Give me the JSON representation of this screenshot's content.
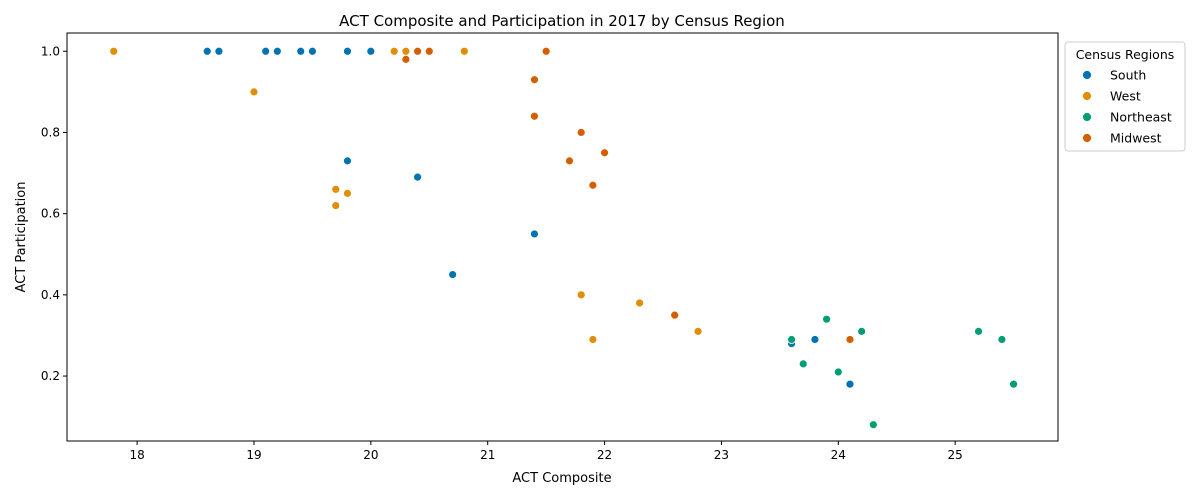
{
  "chart_data": {
    "type": "scatter",
    "title": "ACT Composite and Participation in 2017 by Census Region",
    "xlabel": "ACT Composite",
    "ylabel": "ACT Participation",
    "xlim": [
      17.4,
      25.88
    ],
    "ylim": [
      0.04,
      1.045
    ],
    "xticks": [
      "18",
      "19",
      "20",
      "21",
      "22",
      "23",
      "24",
      "25"
    ],
    "yticks": [
      "0.2",
      "0.4",
      "0.6",
      "0.8",
      "1.0"
    ],
    "grid": false,
    "legend": {
      "title": "Census Regions",
      "placement": "outside-right-top"
    },
    "series": [
      {
        "name": "South",
        "color": "#0173b2",
        "points": [
          [
            18.6,
            1.0
          ],
          [
            18.7,
            1.0
          ],
          [
            19.1,
            1.0
          ],
          [
            19.2,
            1.0
          ],
          [
            19.4,
            1.0
          ],
          [
            19.5,
            1.0
          ],
          [
            19.8,
            1.0
          ],
          [
            20.0,
            1.0
          ],
          [
            19.8,
            0.73
          ],
          [
            20.4,
            0.69
          ],
          [
            21.4,
            0.55
          ],
          [
            20.7,
            0.45
          ],
          [
            23.6,
            0.28
          ],
          [
            23.8,
            0.29
          ],
          [
            24.1,
            0.18
          ]
        ]
      },
      {
        "name": "West",
        "color": "#de8f05",
        "points": [
          [
            17.8,
            1.0
          ],
          [
            19.0,
            0.9
          ],
          [
            20.2,
            1.0
          ],
          [
            20.3,
            1.0
          ],
          [
            20.8,
            1.0
          ],
          [
            19.7,
            0.66
          ],
          [
            19.8,
            0.65
          ],
          [
            19.7,
            0.62
          ],
          [
            21.8,
            0.4
          ],
          [
            21.9,
            0.29
          ],
          [
            22.3,
            0.38
          ],
          [
            22.8,
            0.31
          ],
          [
            20.5,
            1.0
          ]
        ]
      },
      {
        "name": "Northeast",
        "color": "#029e73",
        "points": [
          [
            23.6,
            0.29
          ],
          [
            23.7,
            0.23
          ],
          [
            23.9,
            0.34
          ],
          [
            24.0,
            0.21
          ],
          [
            24.2,
            0.31
          ],
          [
            24.3,
            0.08
          ],
          [
            25.2,
            0.31
          ],
          [
            25.4,
            0.29
          ],
          [
            25.5,
            0.18
          ]
        ]
      },
      {
        "name": "Midwest",
        "color": "#d55e00",
        "points": [
          [
            20.3,
            0.98
          ],
          [
            20.4,
            1.0
          ],
          [
            20.5,
            1.0
          ],
          [
            21.5,
            1.0
          ],
          [
            21.4,
            0.93
          ],
          [
            21.4,
            0.84
          ],
          [
            21.8,
            0.8
          ],
          [
            22.0,
            0.75
          ],
          [
            21.7,
            0.73
          ],
          [
            21.9,
            0.67
          ],
          [
            22.6,
            0.35
          ],
          [
            24.1,
            0.29
          ]
        ]
      }
    ]
  }
}
